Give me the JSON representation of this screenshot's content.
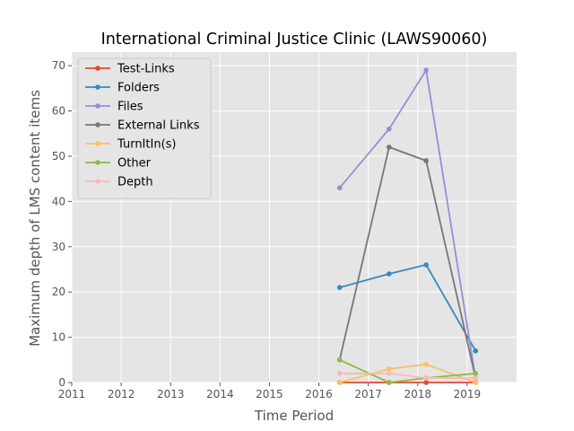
{
  "chart_data": {
    "type": "line",
    "title": "International Criminal Justice Clinic (LAWS90060)",
    "xlabel": "Time Period",
    "ylabel": "Maximum depth of LMS content items",
    "xlim": [
      2011,
      2020
    ],
    "ylim": [
      0,
      73
    ],
    "x_ticks": [
      "2011",
      "2012",
      "2013",
      "2014",
      "2015",
      "2016",
      "2017",
      "2018",
      "2019"
    ],
    "y_ticks": [
      "0",
      "10",
      "20",
      "30",
      "40",
      "50",
      "60",
      "70"
    ],
    "grid": true,
    "legend_position": "top-left",
    "x": [
      2016.42,
      2017.42,
      2018.17,
      2019.17
    ],
    "series": [
      {
        "name": "Test-Links",
        "color": "#e24a33",
        "values": [
          0,
          0,
          0,
          0
        ]
      },
      {
        "name": "Folders",
        "color": "#348abd",
        "values": [
          21,
          24,
          26,
          7
        ]
      },
      {
        "name": "Files",
        "color": "#988ed5",
        "values": [
          43,
          56,
          69,
          1
        ]
      },
      {
        "name": "External Links",
        "color": "#777777",
        "values": [
          5,
          52,
          49,
          1
        ]
      },
      {
        "name": "TurnItIn(s)",
        "color": "#fbc15e",
        "values": [
          0,
          3,
          4,
          0
        ]
      },
      {
        "name": "Other",
        "color": "#8eba42",
        "values": [
          5,
          0,
          1,
          2
        ]
      },
      {
        "name": "Depth",
        "color": "#ffb5b8",
        "values": [
          2,
          2,
          1,
          1
        ]
      }
    ]
  }
}
